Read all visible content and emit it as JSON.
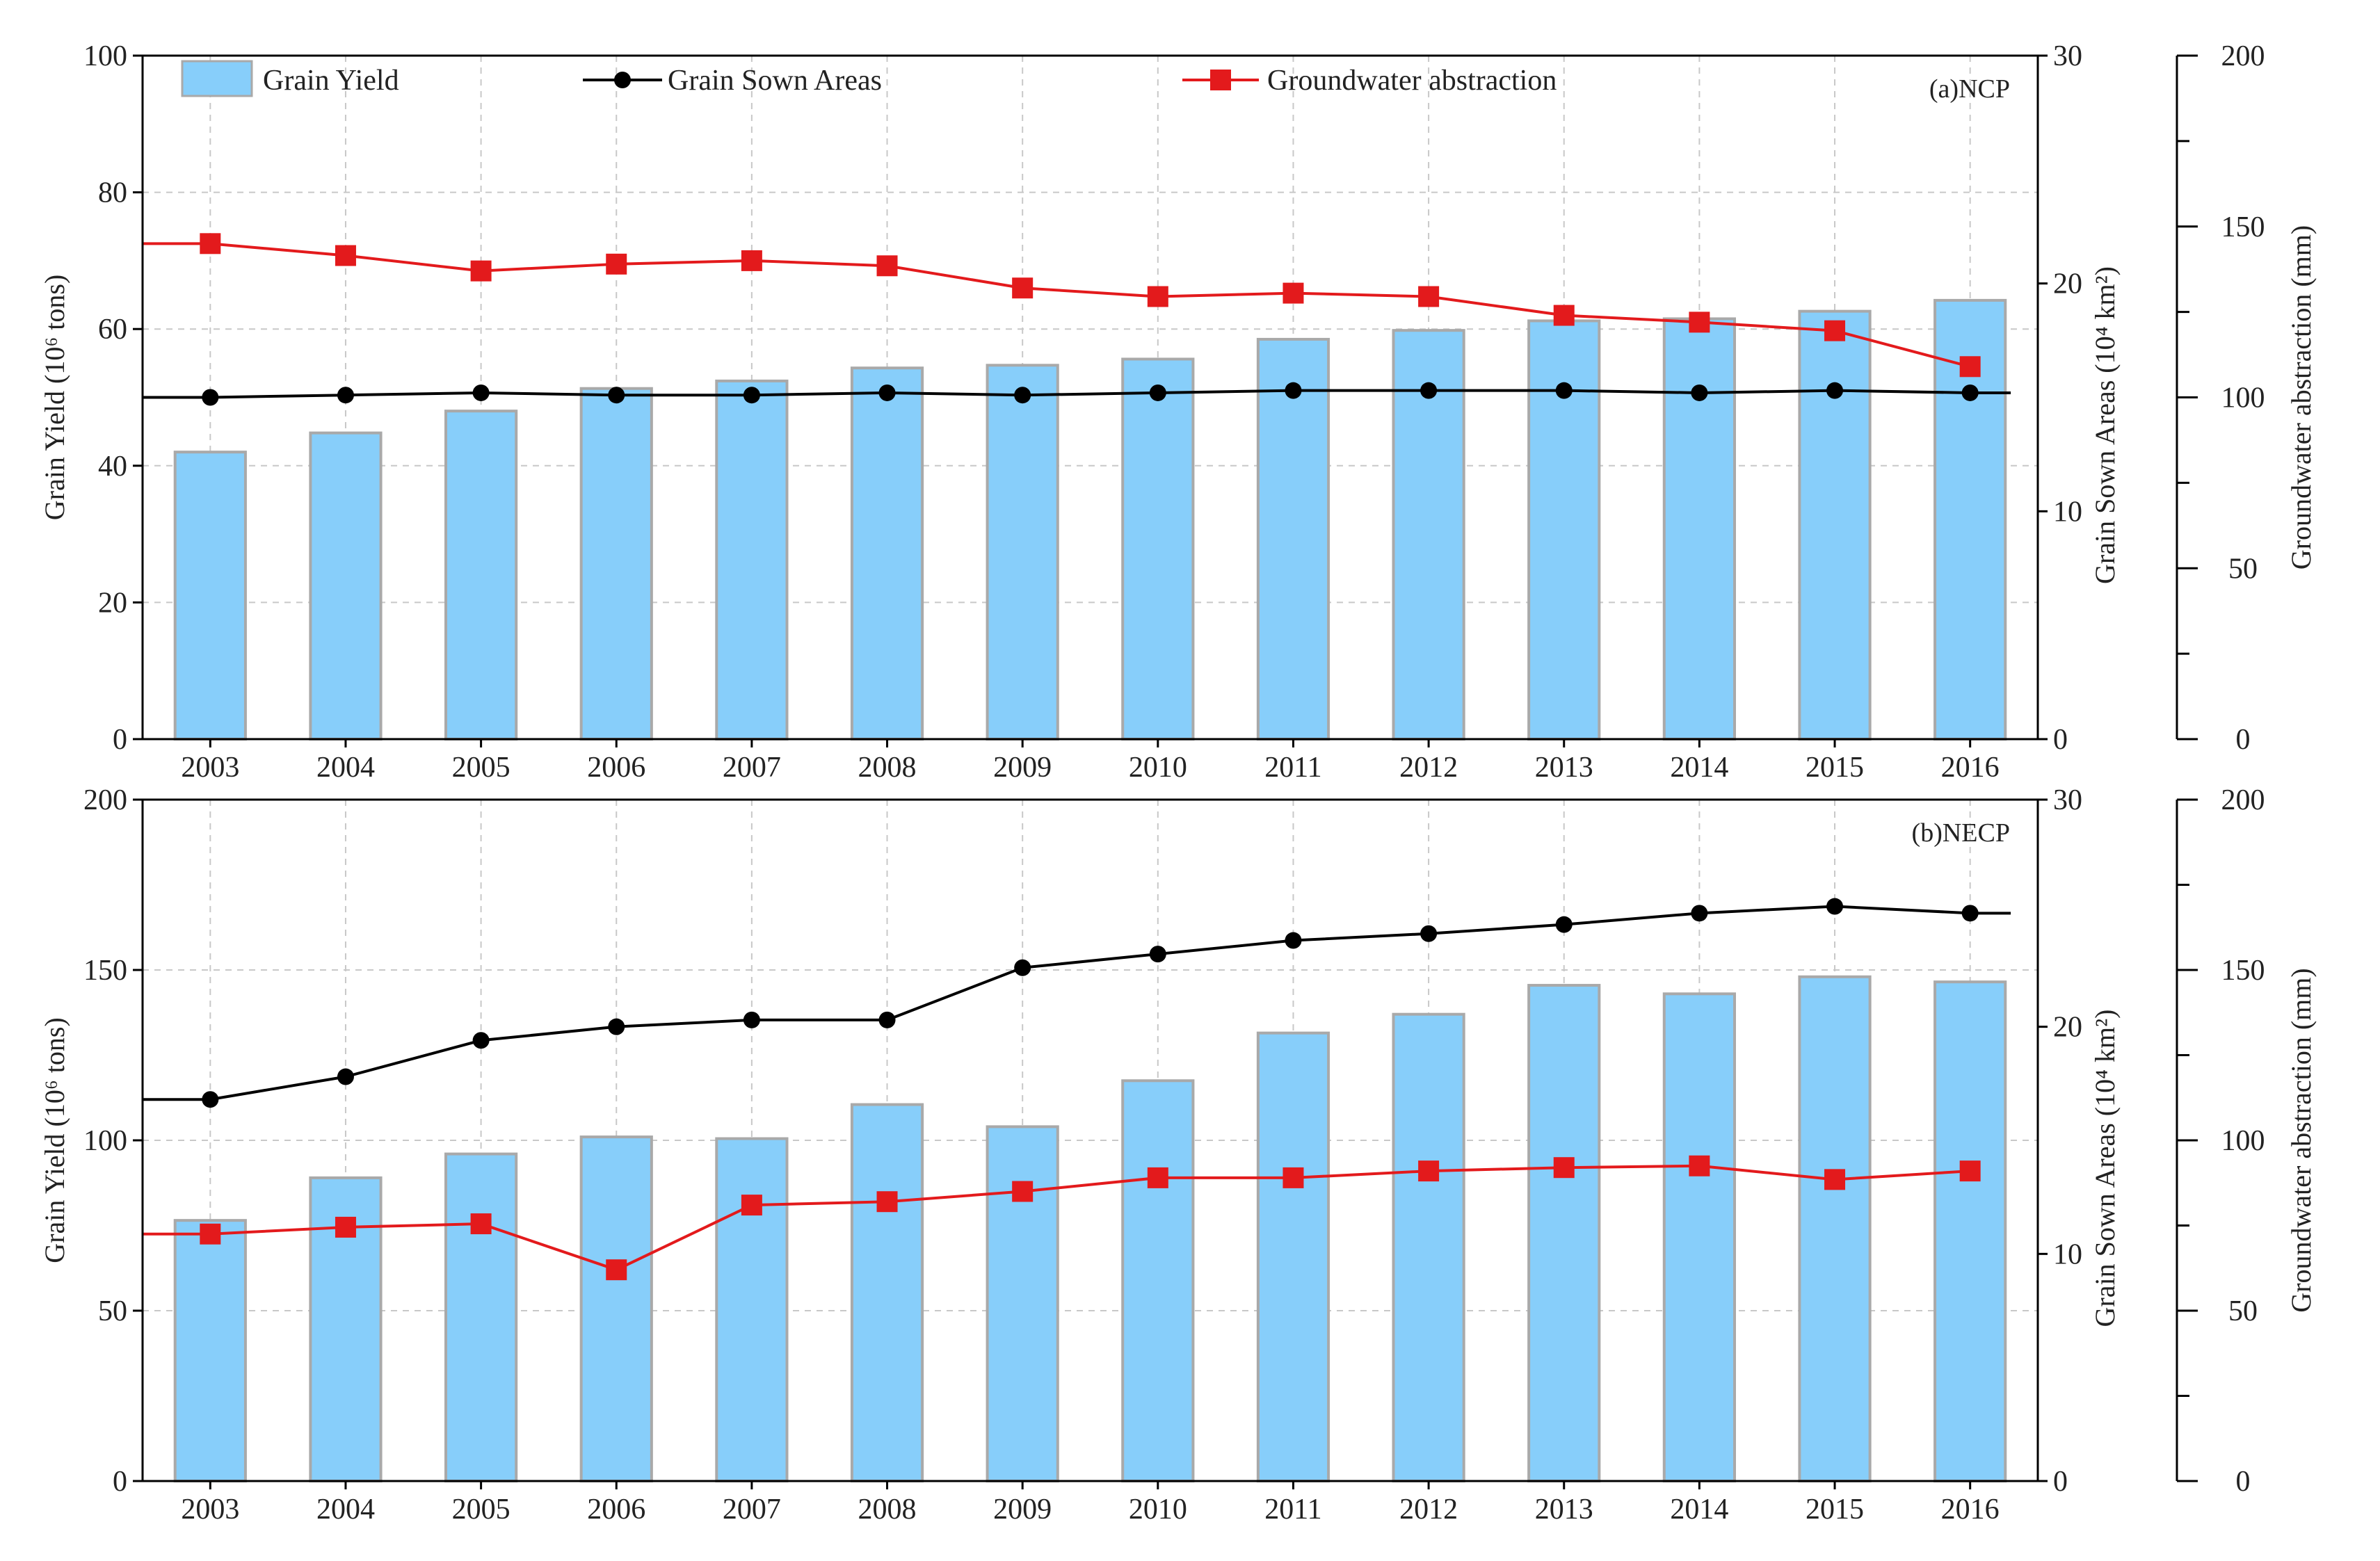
{
  "colors": {
    "bar_fill": "#87cefa",
    "bar_stroke": "#a9a9a9",
    "sown_line": "#000000",
    "groundwater_line": "#e31a1c",
    "grid": "#c8c8c8",
    "axis": "#000000"
  },
  "legend": {
    "placement": "top",
    "items": [
      {
        "label": "Grain  Yield",
        "marker": "bar"
      },
      {
        "label": "Grain Sown Areas",
        "marker": "circle-line"
      },
      {
        "label": "Groundwater abstraction",
        "marker": "square-line"
      }
    ]
  },
  "chart_data": [
    {
      "type": "bar",
      "panel_tag": "(a)NCP",
      "categories": [
        "2003",
        "2004",
        "2005",
        "2006",
        "2007",
        "2008",
        "2009",
        "2010",
        "2011",
        "2012",
        "2013",
        "2014",
        "2015",
        "2016"
      ],
      "ylabel_left": "Grain Yield (10⁶ tons)",
      "ylabel_right1": "Grain Sown Areas  (10⁴ km²)",
      "ylabel_right2": "Groundwater abstraction (mm)",
      "ylim_left": [
        0,
        100
      ],
      "yticks_left": [
        0,
        20,
        40,
        60,
        80,
        100
      ],
      "ylim_right1": [
        0,
        30
      ],
      "yticks_right1": [
        0,
        10,
        20,
        30
      ],
      "ylim_right2": [
        0,
        200
      ],
      "yticks_right2": [
        0,
        50,
        100,
        150,
        200
      ],
      "grid": true,
      "series": [
        {
          "name": "Grain  Yield",
          "axis": "left",
          "kind": "bar",
          "values": [
            42,
            44.8,
            48,
            51.3,
            52.4,
            54.3,
            54.7,
            55.6,
            58.5,
            59.8,
            61.2,
            61.5,
            62.6,
            64.2
          ]
        },
        {
          "name": "Grain Sown Areas",
          "axis": "right1",
          "kind": "line-circle",
          "values": [
            15.0,
            15.1,
            15.2,
            15.1,
            15.1,
            15.2,
            15.1,
            15.2,
            15.3,
            15.3,
            15.3,
            15.2,
            15.3,
            15.2
          ]
        },
        {
          "name": "Groundwater abstraction",
          "axis": "right2",
          "kind": "line-square",
          "values": [
            145,
            141.5,
            137,
            139,
            140,
            138.5,
            132,
            129.5,
            130.5,
            129.5,
            124,
            122,
            119.5,
            109
          ]
        }
      ]
    },
    {
      "type": "bar",
      "panel_tag": "(b)NECP",
      "categories": [
        "2003",
        "2004",
        "2005",
        "2006",
        "2007",
        "2008",
        "2009",
        "2010",
        "2011",
        "2012",
        "2013",
        "2014",
        "2015",
        "2016"
      ],
      "ylabel_left": "Grain Yield (10⁶ tons)",
      "ylabel_right1": "Grain Sown Areas  (10⁴ km²)",
      "ylabel_right2": "Groundwater abstraction (mm)",
      "ylim_left": [
        0,
        200
      ],
      "yticks_left": [
        0,
        50,
        100,
        150,
        200
      ],
      "ylim_right1": [
        0,
        30
      ],
      "yticks_right1": [
        0,
        10,
        20,
        30
      ],
      "ylim_right2": [
        0,
        200
      ],
      "yticks_right2": [
        0,
        50,
        100,
        150,
        200
      ],
      "grid": true,
      "series": [
        {
          "name": "Grain  Yield",
          "axis": "left",
          "kind": "bar",
          "values": [
            76.5,
            89,
            96,
            101,
            100.5,
            110.5,
            104,
            117.5,
            131.5,
            137,
            145.5,
            143,
            148,
            146.5
          ]
        },
        {
          "name": "Grain Sown Areas",
          "axis": "right1",
          "kind": "line-circle",
          "values": [
            16.8,
            17.8,
            19.4,
            20.0,
            20.3,
            20.3,
            22.6,
            23.2,
            23.8,
            24.1,
            24.5,
            25.0,
            25.3,
            25.0
          ]
        },
        {
          "name": "Groundwater abstraction",
          "axis": "right2",
          "kind": "line-square",
          "values": [
            72.5,
            74.5,
            75.5,
            62,
            81,
            82,
            85,
            89,
            89,
            91,
            92,
            92.5,
            88.5,
            91
          ]
        }
      ]
    }
  ]
}
